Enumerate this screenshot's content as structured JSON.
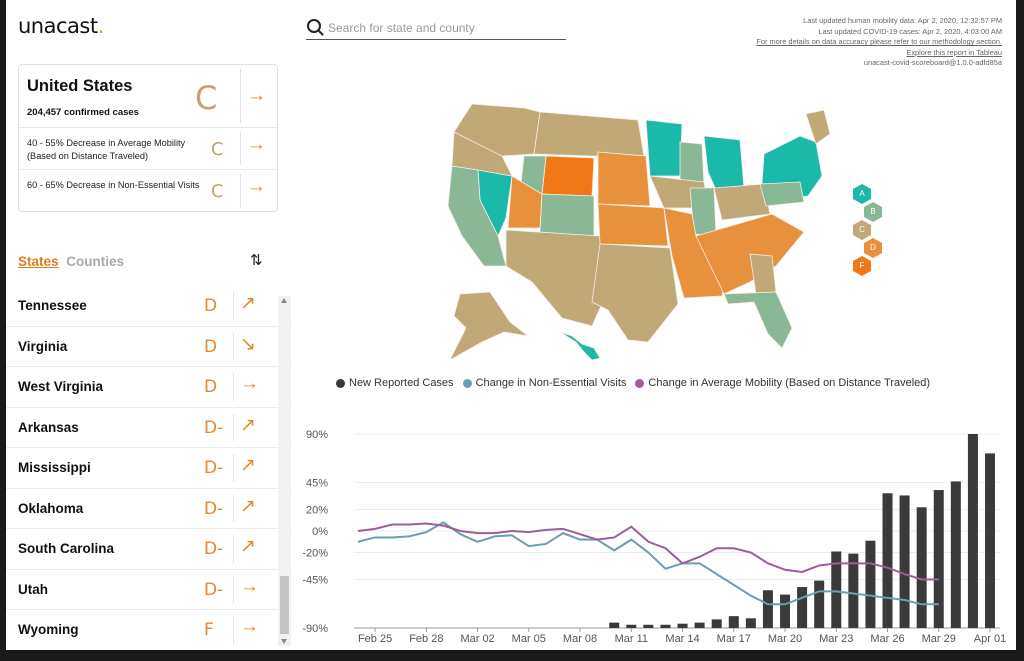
{
  "logo": {
    "text": "unacast",
    "dot": "."
  },
  "search": {
    "placeholder": "Search for state and county"
  },
  "meta": {
    "line1": "Last updated human mobility data: Apr 2, 2020, 12:32:57 PM",
    "line2": "Last updated COVID-19 cases: Apr 2, 2020, 4:03:00 AM",
    "line3": "For more details on data accuracy please refer to our methodology section.",
    "line4": "Explore this report in Tableau",
    "line5": "unacast-covid-scoreboard@1.0.0-adfd85a"
  },
  "summary": {
    "name": "United States",
    "cases": "204,457 confirmed cases",
    "grade": "C",
    "arrow": "→",
    "rows": [
      {
        "label": "40 - 55% Decrease in Average Mobility (Based on Distance Traveled)",
        "grade": "C",
        "arrow": "→"
      },
      {
        "label": "60 - 65% Decrease in Non-Essential Visits",
        "grade": "C",
        "arrow": "→"
      }
    ]
  },
  "tabs": {
    "states": "States",
    "counties": "Counties",
    "sort_icon": "⇅"
  },
  "states": [
    {
      "name": "Tennessee",
      "grade": "D",
      "arrow": "↗"
    },
    {
      "name": "Virginia",
      "grade": "D",
      "arrow": "↘"
    },
    {
      "name": "West Virginia",
      "grade": "D",
      "arrow": "→"
    },
    {
      "name": "Arkansas",
      "grade": "D-",
      "arrow": "↗"
    },
    {
      "name": "Mississippi",
      "grade": "D-",
      "arrow": "↗"
    },
    {
      "name": "Oklahoma",
      "grade": "D-",
      "arrow": "↗"
    },
    {
      "name": "South Carolina",
      "grade": "D-",
      "arrow": "↗"
    },
    {
      "name": "Utah",
      "grade": "D-",
      "arrow": "→"
    },
    {
      "name": "Wyoming",
      "grade": "F",
      "arrow": "→"
    }
  ],
  "grade_legend": [
    {
      "label": "A",
      "color": "#1bb9a9"
    },
    {
      "label": "B",
      "color": "#8ab897"
    },
    {
      "label": "C",
      "color": "#c1a877"
    },
    {
      "label": "D",
      "color": "#e8913d"
    },
    {
      "label": "F",
      "color": "#f07818"
    }
  ],
  "icons": {
    "search": "search-icon",
    "sort": "sort-icon",
    "trend": "arrow-icon"
  },
  "chart_data": {
    "type": "bar",
    "legend": [
      "New Reported Cases",
      "Change in Non-Essential Visits",
      "Change in Average Mobility (Based on Distance Traveled)"
    ],
    "colors": {
      "cases": "#3a3a3a",
      "visits": "#6c9eb0",
      "mobility": "#9b5e9b"
    },
    "y_ticks": [
      "90%",
      "45%",
      "20%",
      "0%",
      "-20%",
      "-45%",
      "-90%"
    ],
    "ylim": [
      -90,
      90
    ],
    "x_ticks": [
      "Feb 25",
      "Feb 28",
      "Mar 02",
      "Mar 05",
      "Mar 08",
      "Mar 11",
      "Mar 14",
      "Mar 17",
      "Mar 20",
      "Mar 23",
      "Mar 26",
      "Mar 29",
      "Apr 01"
    ],
    "series": [
      {
        "name": "Change in Non-Essential Visits",
        "x": [
          "Feb 24",
          "Feb 25",
          "Feb 26",
          "Feb 27",
          "Feb 28",
          "Feb 29",
          "Mar 01",
          "Mar 02",
          "Mar 03",
          "Mar 04",
          "Mar 05",
          "Mar 06",
          "Mar 07",
          "Mar 08",
          "Mar 09",
          "Mar 10",
          "Mar 11",
          "Mar 12",
          "Mar 13",
          "Mar 14",
          "Mar 15",
          "Mar 16",
          "Mar 17",
          "Mar 18",
          "Mar 19",
          "Mar 20",
          "Mar 21",
          "Mar 22",
          "Mar 23",
          "Mar 24",
          "Mar 25",
          "Mar 26",
          "Mar 27",
          "Mar 28",
          "Mar 29"
        ],
        "values": [
          -10,
          -6,
          -6,
          -5,
          -1,
          8,
          -3,
          -10,
          -5,
          -4,
          -14,
          -12,
          -2,
          -8,
          -8,
          -18,
          -8,
          -20,
          -35,
          -30,
          -30,
          -40,
          -50,
          -60,
          -68,
          -68,
          -62,
          -56,
          -56,
          -58,
          -60,
          -62,
          -64,
          -68,
          -68
        ]
      },
      {
        "name": "Change in Average Mobility (Based on Distance Traveled)",
        "x": [
          "Feb 24",
          "Feb 25",
          "Feb 26",
          "Feb 27",
          "Feb 28",
          "Feb 29",
          "Mar 01",
          "Mar 02",
          "Mar 03",
          "Mar 04",
          "Mar 05",
          "Mar 06",
          "Mar 07",
          "Mar 08",
          "Mar 09",
          "Mar 10",
          "Mar 11",
          "Mar 12",
          "Mar 13",
          "Mar 14",
          "Mar 15",
          "Mar 16",
          "Mar 17",
          "Mar 18",
          "Mar 19",
          "Mar 20",
          "Mar 21",
          "Mar 22",
          "Mar 23",
          "Mar 24",
          "Mar 25",
          "Mar 26",
          "Mar 27",
          "Mar 28",
          "Mar 29"
        ],
        "values": [
          0,
          2,
          6,
          6,
          7,
          5,
          0,
          -2,
          -2,
          0,
          -1,
          1,
          2,
          -3,
          -8,
          -6,
          4,
          -10,
          -16,
          -30,
          -24,
          -16,
          -16,
          -20,
          -30,
          -36,
          -38,
          -32,
          -30,
          -30,
          -30,
          -34,
          -40,
          -45,
          -45
        ]
      }
    ],
    "bars": {
      "name": "New Reported Cases",
      "x": [
        "Mar 10",
        "Mar 11",
        "Mar 12",
        "Mar 13",
        "Mar 14",
        "Mar 15",
        "Mar 16",
        "Mar 17",
        "Mar 18",
        "Mar 19",
        "Mar 20",
        "Mar 21",
        "Mar 22",
        "Mar 23",
        "Mar 24",
        "Mar 25",
        "Mar 26",
        "Mar 27",
        "Mar 28",
        "Mar 29",
        "Mar 30",
        "Mar 31",
        "Apr 01"
      ],
      "values": [
        -85,
        -87,
        -87,
        -87,
        -86,
        -85,
        -82,
        -79,
        -81,
        -55,
        -59,
        -52,
        -46,
        -19,
        -21,
        -9,
        35,
        33,
        22,
        38,
        46,
        90,
        72
      ]
    }
  }
}
